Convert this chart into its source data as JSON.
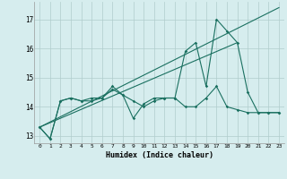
{
  "xlabel": "Humidex (Indice chaleur)",
  "background_color": "#d6edee",
  "grid_color": "#b0cccc",
  "line_color": "#1a7060",
  "xlim": [
    -0.5,
    23.5
  ],
  "ylim": [
    12.75,
    17.6
  ],
  "yticks": [
    13,
    14,
    15,
    16,
    17
  ],
  "xticks": [
    0,
    1,
    2,
    3,
    4,
    5,
    6,
    7,
    8,
    9,
    10,
    11,
    12,
    13,
    14,
    15,
    16,
    17,
    18,
    19,
    20,
    21,
    22,
    23
  ],
  "series1_x": [
    0,
    1,
    2,
    3,
    4,
    5,
    6,
    7,
    8,
    9,
    10,
    11,
    12,
    13,
    14,
    15,
    16,
    17,
    18,
    19,
    20,
    21,
    22,
    23
  ],
  "series1_y": [
    13.3,
    12.9,
    14.2,
    14.3,
    14.2,
    14.2,
    14.3,
    14.6,
    14.4,
    14.2,
    14.0,
    14.2,
    14.3,
    14.3,
    14.0,
    14.0,
    14.3,
    14.7,
    14.0,
    13.9,
    13.8,
    13.8,
    13.8,
    13.8
  ],
  "series2_x": [
    0,
    1,
    2,
    3,
    4,
    5,
    6,
    7,
    8,
    9,
    10,
    11,
    12,
    13,
    14,
    15,
    16,
    17,
    18,
    19,
    20,
    21,
    22,
    23
  ],
  "series2_y": [
    13.3,
    12.9,
    14.2,
    14.3,
    14.2,
    14.3,
    14.3,
    14.7,
    14.4,
    13.6,
    14.1,
    14.3,
    14.3,
    14.3,
    15.9,
    16.2,
    14.7,
    17.0,
    16.6,
    16.2,
    14.5,
    13.8,
    13.8,
    13.8
  ],
  "series3_x": [
    0,
    23
  ],
  "series3_y": [
    13.3,
    17.4
  ],
  "series4_x": [
    0,
    19
  ],
  "series4_y": [
    13.3,
    16.2
  ]
}
